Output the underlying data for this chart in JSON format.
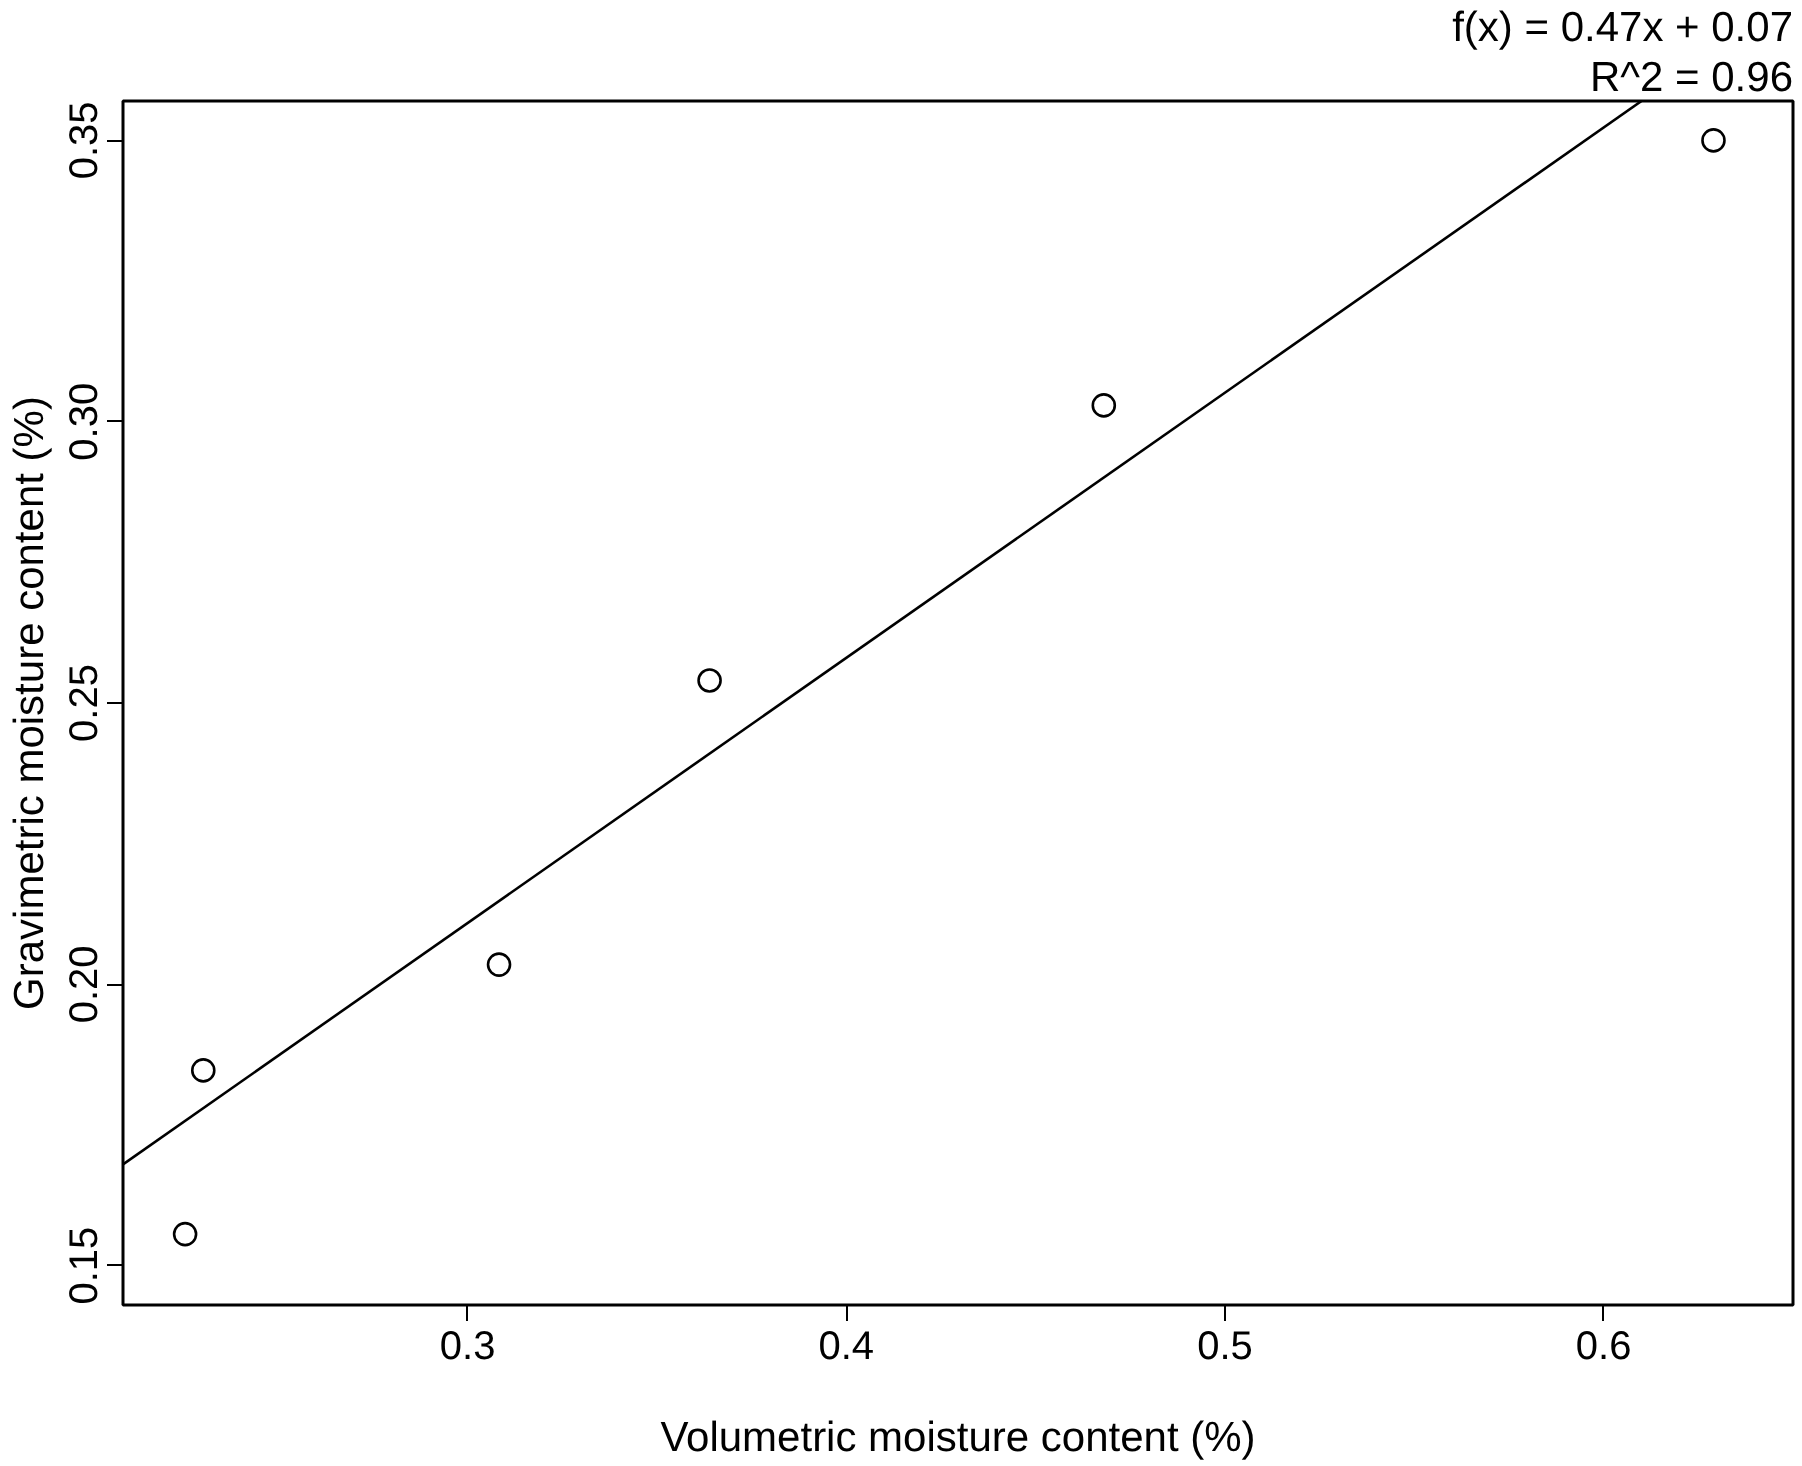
{
  "chart_data": {
    "type": "scatter",
    "xlabel": "Volumetric moisture content (%)",
    "ylabel": "Gravimetric moisture content (%)",
    "xlim": [
      0.209,
      0.65
    ],
    "ylim": [
      0.143,
      0.357
    ],
    "xticks": [
      0.3,
      0.4,
      0.5,
      0.6
    ],
    "yticks": [
      0.15,
      {
        "value": 0.2,
        "label": "0.20"
      },
      0.25,
      {
        "value": 0.3,
        "label": "0.30"
      },
      0.35
    ],
    "grid": false,
    "annotations": [
      "f(x) = 0.47x + 0.07",
      "R^2 = 0.96"
    ],
    "series": [
      {
        "marker": "circle",
        "color": "#000000",
        "x": [
          0.2254,
          0.2302,
          0.3083,
          0.3639,
          0.468,
          0.629
        ],
        "values": [
          0.1556,
          0.1847,
          0.2035,
          0.254,
          0.3029,
          0.35
        ]
      },
      {
        "type": "line",
        "marker": "none",
        "color": "#000000",
        "x": [
          0.209,
          0.61
        ],
        "values": [
          0.168,
          0.357
        ]
      }
    ]
  }
}
